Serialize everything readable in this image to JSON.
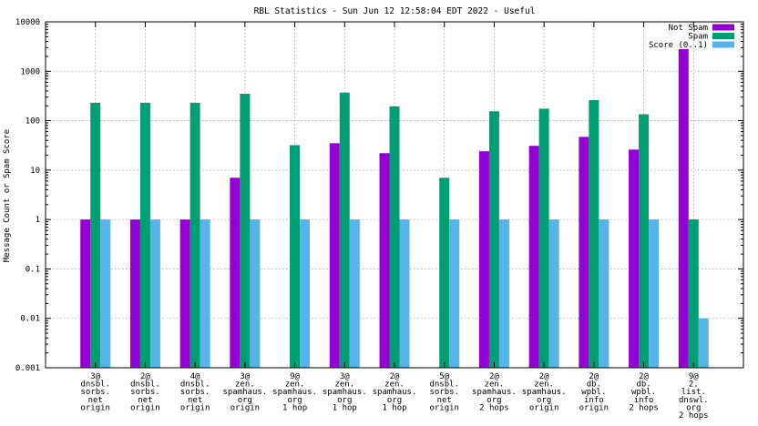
{
  "chart_data": {
    "type": "bar",
    "title": "RBL Statistics - Sun Jun 12 12:58:04 EDT 2022 - Useful",
    "ylabel": "Message Count or Spam Score",
    "xlabel": "",
    "yscale": "log",
    "ylim": [
      0.001,
      10000
    ],
    "y_tick_values": [
      0.001,
      0.01,
      0.1,
      1,
      10,
      100,
      1000,
      10000
    ],
    "y_tick_labels": [
      "0.001",
      "0.01",
      "0.1",
      "1",
      "10",
      "100",
      "1000",
      "10000"
    ],
    "grid": true,
    "legend_position": "top-right",
    "categories": [
      [
        "3@",
        "dnsbl.",
        "sorbs.",
        "net",
        "origin"
      ],
      [
        "2@",
        "dnsbl.",
        "sorbs.",
        "net",
        "origin"
      ],
      [
        "4@",
        "dnsbl.",
        "sorbs.",
        "net",
        "origin"
      ],
      [
        "3@",
        "zen.",
        "spamhaus.",
        "org",
        "origin"
      ],
      [
        "9@",
        "zen.",
        "spamhaus.",
        "org",
        "1 hop"
      ],
      [
        "3@",
        "zen.",
        "spamhaus.",
        "org",
        "1 hop"
      ],
      [
        "2@",
        "zen.",
        "spamhaus.",
        "org",
        "1 hop"
      ],
      [
        "5@",
        "dnsbl.",
        "sorbs.",
        "net",
        "origin"
      ],
      [
        "2@",
        "zen.",
        "spamhaus.",
        "org",
        "2 hops"
      ],
      [
        "2@",
        "zen.",
        "spamhaus.",
        "org",
        "origin"
      ],
      [
        "2@",
        "db.",
        "wpbl.",
        "info",
        "origin"
      ],
      [
        "2@",
        "db.",
        "wpbl.",
        "info",
        "2 hops"
      ],
      [
        "9@",
        "2.",
        "list.",
        "dnswl.",
        "org",
        "2 hops"
      ]
    ],
    "series": [
      {
        "name": "Not Spam",
        "color": "#9400d3",
        "values": [
          1,
          1,
          1,
          7,
          0,
          35,
          22,
          0,
          24,
          31,
          47,
          26,
          2800
        ]
      },
      {
        "name": "Spam",
        "color": "#009e73",
        "values": [
          230,
          230,
          230,
          350,
          32,
          370,
          195,
          7,
          155,
          175,
          260,
          135,
          1
        ]
      },
      {
        "name": "Score (0..1)",
        "color": "#56b4e9",
        "values": [
          1,
          1,
          1,
          1,
          1,
          1,
          1,
          1,
          1,
          1,
          1,
          1,
          0.01
        ]
      }
    ]
  }
}
